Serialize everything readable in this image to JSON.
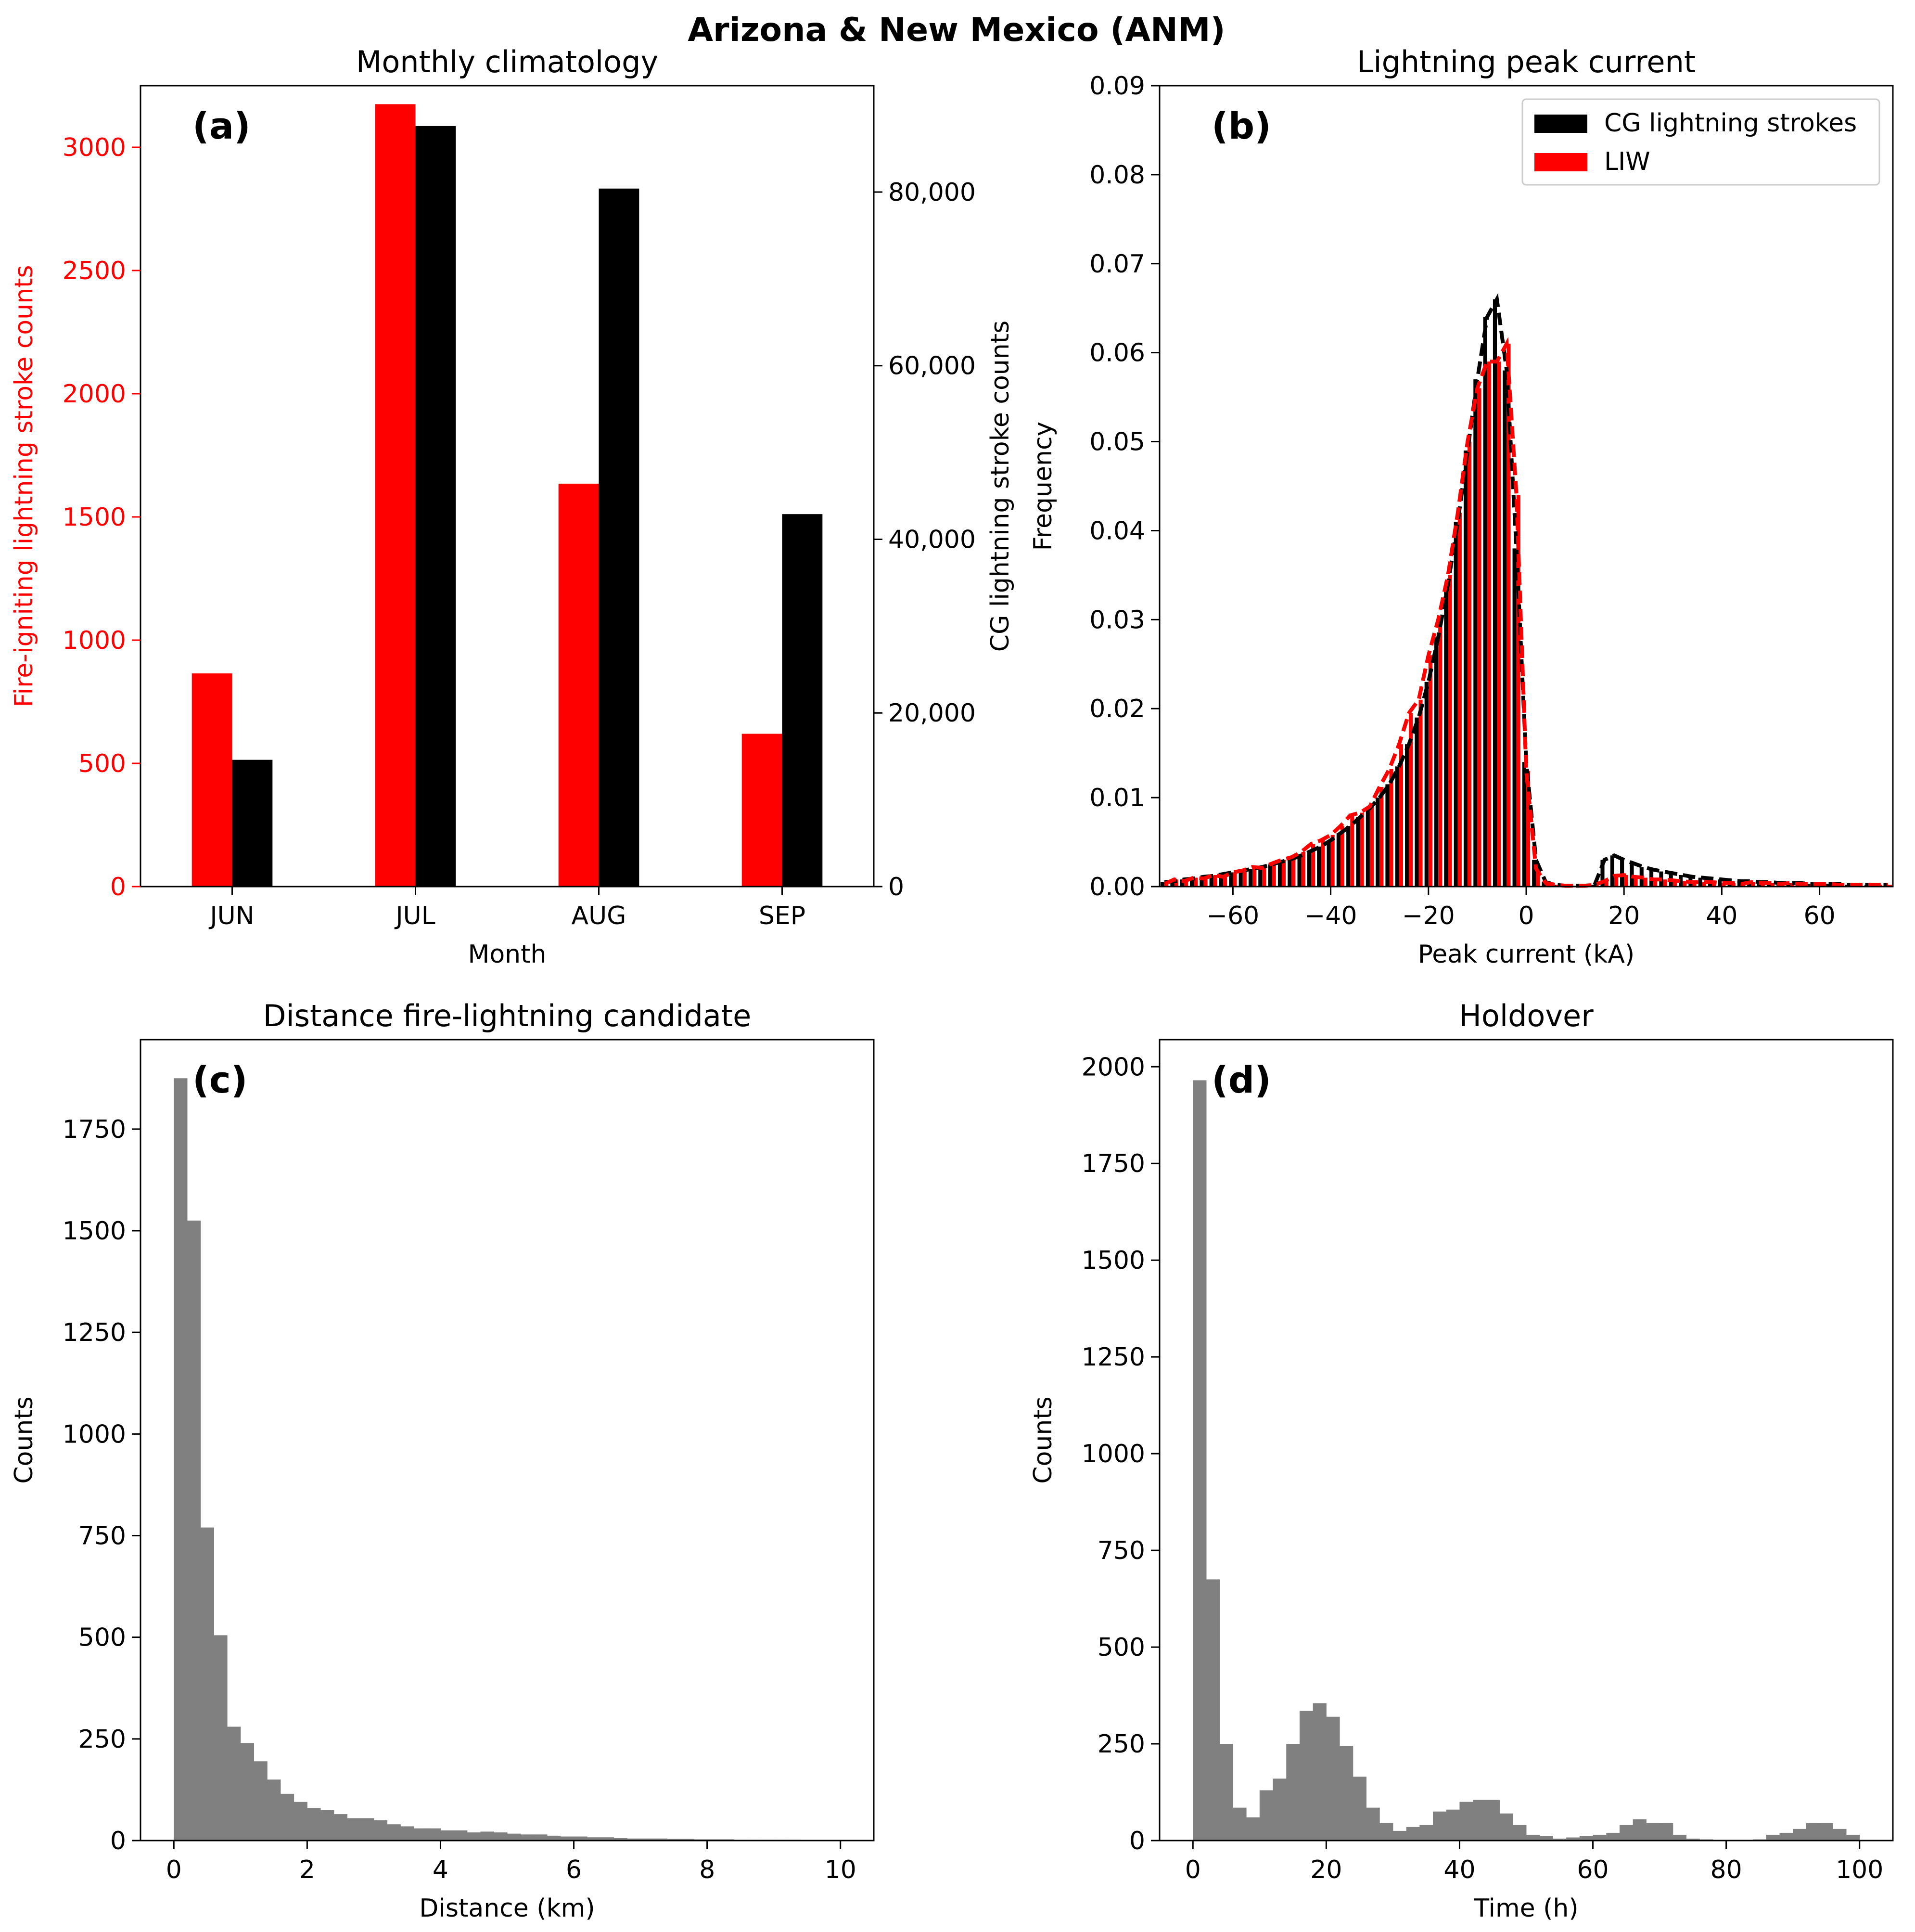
{
  "figure_title": "Arizona & New Mexico (ANM)",
  "chart_data": [
    {
      "id": "a",
      "type": "bar",
      "panel_label": "(a)",
      "title": "Monthly climatology",
      "xlabel": "Month",
      "ylabel": "Fire-igniting lightning stroke counts",
      "ylabel_right": "CG lightning stroke counts",
      "categories": [
        "JUN",
        "JUL",
        "AUG",
        "SEP"
      ],
      "ylim": [
        0,
        3250
      ],
      "ylim_right": [
        0,
        92250
      ],
      "yticks": [
        "0",
        "500",
        "1000",
        "1500",
        "2000",
        "2500",
        "3000"
      ],
      "yticks_right": [
        "0",
        "20,000",
        "40,000",
        "60,000",
        "80,000"
      ],
      "series": [
        {
          "name": "Fire-igniting lightning strokes",
          "axis": "left",
          "color": "#ff0000",
          "values": [
            865,
            3175,
            1635,
            620
          ]
        },
        {
          "name": "CG lightning strokes",
          "axis": "right",
          "color": "#000000",
          "values": [
            14600,
            87600,
            80400,
            42900
          ]
        }
      ],
      "left_axis_color": "#ff0000"
    },
    {
      "id": "b",
      "type": "bar",
      "panel_label": "(b)",
      "title": "Lightning peak current",
      "xlabel": "Peak current (kA)",
      "ylabel": "Frequency",
      "xlim": [
        -75,
        75
      ],
      "ylim": [
        0,
        0.09
      ],
      "xticks": [
        "−60",
        "−40",
        "−20",
        "0",
        "20",
        "40",
        "60"
      ],
      "yticks": [
        "0.00",
        "0.01",
        "0.02",
        "0.03",
        "0.04",
        "0.05",
        "0.06",
        "0.07",
        "0.08",
        "0.09"
      ],
      "legend_position": "top-right",
      "bin_edges_start": -75,
      "bin_width": 2,
      "series": [
        {
          "name": "CG lightning strokes",
          "color": "#000000",
          "values": [
            0.0005,
            0.0006,
            0.0008,
            0.0009,
            0.0011,
            0.0012,
            0.0014,
            0.0016,
            0.0018,
            0.002,
            0.0022,
            0.0025,
            0.0028,
            0.0031,
            0.0035,
            0.004,
            0.0045,
            0.0052,
            0.006,
            0.0068,
            0.0078,
            0.0088,
            0.01,
            0.0115,
            0.0135,
            0.016,
            0.019,
            0.023,
            0.028,
            0.034,
            0.041,
            0.049,
            0.057,
            0.064,
            0.066,
            0.058,
            0.038,
            0.014,
            0.003,
            0.0005,
            0.0002,
            0.0001,
            0.0001,
            0.0001,
            0.0002,
            0.003,
            0.0035,
            0.003,
            0.0026,
            0.0022,
            0.0019,
            0.0017,
            0.0015,
            0.0013,
            0.0011,
            0.001,
            0.0009,
            0.0008,
            0.0007,
            0.0006,
            0.0006,
            0.0005,
            0.0005,
            0.0004,
            0.0004,
            0.0004,
            0.0003,
            0.0003,
            0.0003,
            0.0003,
            0.0002,
            0.0002,
            0.0002,
            0.0002,
            0.0002
          ]
        },
        {
          "name": "LIW",
          "color": "#ff0000",
          "values": [
            0.0003,
            0.0008,
            0.0006,
            0.001,
            0.0009,
            0.0013,
            0.0011,
            0.0016,
            0.0018,
            0.0022,
            0.0021,
            0.0026,
            0.003,
            0.0033,
            0.0039,
            0.0048,
            0.0052,
            0.0058,
            0.0068,
            0.008,
            0.0083,
            0.009,
            0.0112,
            0.0132,
            0.016,
            0.0195,
            0.021,
            0.026,
            0.03,
            0.035,
            0.042,
            0.05,
            0.056,
            0.059,
            0.059,
            0.061,
            0.044,
            0.013,
            0.002,
            0.0004,
            0.0002,
            0.0001,
            0.0001,
            0.0001,
            0.0002,
            0.0006,
            0.0012,
            0.0013,
            0.0011,
            0.001,
            0.0008,
            0.0008,
            0.0007,
            0.0006,
            0.0005,
            0.0005,
            0.0005,
            0.0004,
            0.0004,
            0.0003,
            0.0005,
            0.0004,
            0.0004,
            0.0003,
            0.0004,
            0.0003,
            0.0003,
            0.0003,
            0.0003,
            0.0002,
            0.0002,
            0.0002,
            0.0002,
            0.0002,
            0.0002
          ]
        }
      ]
    },
    {
      "id": "c",
      "type": "bar",
      "panel_label": "(c)",
      "title": "Distance fire-lightning candidate",
      "xlabel": "Distance (km)",
      "ylabel": "Counts",
      "xlim": [
        -0.5,
        10.5
      ],
      "ylim": [
        0,
        1970
      ],
      "xticks": [
        "0",
        "2",
        "4",
        "6",
        "8",
        "10"
      ],
      "yticks": [
        "0",
        "250",
        "500",
        "750",
        "1000",
        "1250",
        "1500",
        "1750"
      ],
      "bin_edges_start": 0,
      "bin_width": 0.2,
      "color": "#808080",
      "values": [
        1875,
        1525,
        770,
        505,
        280,
        240,
        195,
        150,
        115,
        95,
        80,
        75,
        65,
        55,
        55,
        50,
        40,
        35,
        30,
        30,
        25,
        25,
        20,
        22,
        20,
        17,
        15,
        15,
        12,
        10,
        10,
        8,
        8,
        6,
        5,
        5,
        5,
        4,
        4,
        3,
        3,
        3,
        2,
        2,
        2,
        2,
        2,
        1,
        1,
        1
      ]
    },
    {
      "id": "d",
      "type": "bar",
      "panel_label": "(d)",
      "title": "Holdover",
      "xlabel": "Time (h)",
      "ylabel": "Counts",
      "xlim": [
        -5,
        105
      ],
      "ylim": [
        0,
        2070
      ],
      "xticks": [
        "0",
        "20",
        "40",
        "60",
        "80",
        "100"
      ],
      "yticks": [
        "0",
        "250",
        "500",
        "750",
        "1000",
        "1250",
        "1500",
        "1750",
        "2000"
      ],
      "bin_edges_start": 0,
      "bin_width": 2,
      "color": "#808080",
      "values": [
        1965,
        675,
        250,
        85,
        60,
        130,
        160,
        250,
        335,
        355,
        320,
        245,
        165,
        85,
        45,
        25,
        35,
        40,
        75,
        80,
        100,
        105,
        105,
        70,
        40,
        15,
        12,
        5,
        8,
        12,
        15,
        20,
        40,
        55,
        45,
        45,
        15,
        5,
        3,
        2,
        2,
        2,
        3,
        15,
        20,
        30,
        45,
        45,
        30,
        15
      ]
    }
  ]
}
